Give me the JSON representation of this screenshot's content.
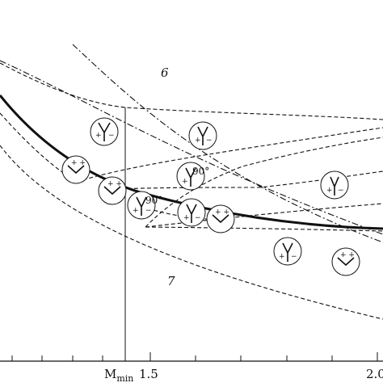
{
  "diagram": {
    "axis": {
      "tick_labels": [
        "1.5",
        "2.0"
      ],
      "m_min_label": "M",
      "m_min_subscript": "min"
    },
    "regions": {
      "upper": "6",
      "lower": "7"
    },
    "angle_labels": [
      "90°",
      "90°"
    ],
    "colors": {
      "ink": "#111111",
      "background": "#ffffff"
    }
  }
}
